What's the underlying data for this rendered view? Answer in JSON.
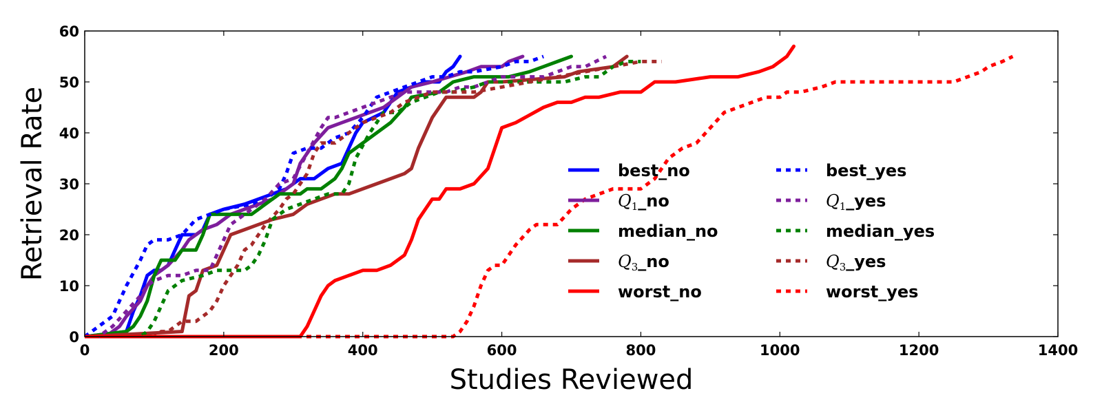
{
  "chart_data": {
    "type": "line",
    "title": "",
    "xlabel": "Studies Reviewed",
    "ylabel": "Retrieval Rate",
    "xlim": [
      0,
      1400
    ],
    "ylim": [
      0,
      60
    ],
    "xticks": [
      0,
      200,
      400,
      600,
      800,
      1000,
      1200,
      1400
    ],
    "yticks": [
      0,
      10,
      20,
      30,
      40,
      50,
      60
    ],
    "grid": false,
    "legend_position": "center-right",
    "series": [
      {
        "key": "best_no",
        "name": "best_no",
        "color": "#0000ff",
        "style": "solid",
        "x": [
          0,
          60,
          70,
          80,
          90,
          100,
          110,
          120,
          130,
          140,
          150,
          160,
          170,
          180,
          200,
          230,
          250,
          270,
          290,
          300,
          310,
          330,
          350,
          370,
          380,
          390,
          400,
          430,
          450,
          470,
          490,
          510,
          520,
          530,
          540
        ],
        "y": [
          0,
          1,
          5,
          8,
          12,
          13,
          13,
          14,
          17,
          20,
          20,
          20,
          21,
          24,
          25,
          26,
          27,
          28,
          29,
          30,
          31,
          31,
          33,
          34,
          37,
          40,
          42,
          44,
          48,
          49,
          50,
          50,
          52,
          53,
          55
        ]
      },
      {
        "key": "q1_no",
        "name": "_no",
        "prefix": "Q",
        "sub": "1",
        "color": "#7e1e9c",
        "style": "solid",
        "x": [
          0,
          30,
          50,
          60,
          80,
          90,
          100,
          120,
          140,
          150,
          160,
          170,
          190,
          210,
          230,
          250,
          270,
          280,
          290,
          300,
          310,
          330,
          350,
          370,
          390,
          410,
          430,
          450,
          470,
          500,
          550,
          570,
          600,
          610,
          630
        ],
        "y": [
          0,
          0,
          2,
          4,
          7,
          10,
          12,
          14,
          17,
          19,
          20,
          21,
          22,
          24,
          25,
          26,
          27,
          28,
          29,
          30,
          34,
          38,
          41,
          42,
          43,
          44,
          45,
          47,
          49,
          50,
          52,
          53,
          53,
          54,
          55
        ]
      },
      {
        "key": "median_no",
        "name": "median_no",
        "color": "#008000",
        "style": "solid",
        "x": [
          0,
          60,
          70,
          80,
          90,
          100,
          110,
          130,
          140,
          160,
          170,
          180,
          240,
          270,
          280,
          310,
          320,
          340,
          360,
          370,
          380,
          400,
          420,
          440,
          460,
          470,
          510,
          530,
          560,
          610,
          640,
          660,
          680,
          700
        ],
        "y": [
          0,
          1,
          2,
          4,
          7,
          12,
          15,
          15,
          17,
          17,
          20,
          24,
          24,
          27,
          28,
          28,
          29,
          29,
          31,
          33,
          36,
          38,
          40,
          42,
          45,
          47,
          48,
          50,
          51,
          51,
          52,
          53,
          54,
          55
        ]
      },
      {
        "key": "q3_no",
        "name": "_no",
        "prefix": "Q",
        "sub": "3",
        "color": "#a52a2a",
        "style": "solid",
        "x": [
          0,
          140,
          150,
          160,
          170,
          190,
          210,
          230,
          250,
          270,
          300,
          320,
          340,
          360,
          380,
          400,
          420,
          440,
          460,
          470,
          480,
          500,
          520,
          560,
          570,
          580,
          600,
          690,
          710,
          760,
          780
        ],
        "y": [
          0,
          1,
          8,
          9,
          13,
          14,
          20,
          21,
          22,
          23,
          24,
          26,
          27,
          28,
          28,
          29,
          30,
          31,
          32,
          33,
          37,
          43,
          47,
          47,
          48,
          50,
          50,
          51,
          52,
          53,
          55
        ]
      },
      {
        "key": "worst_no",
        "name": "worst_no",
        "color": "#ff0000",
        "style": "solid",
        "x": [
          0,
          310,
          320,
          330,
          340,
          350,
          360,
          380,
          400,
          420,
          440,
          460,
          470,
          480,
          490,
          500,
          510,
          520,
          540,
          560,
          580,
          600,
          620,
          660,
          680,
          700,
          720,
          740,
          770,
          800,
          820,
          850,
          900,
          940,
          970,
          990,
          1010,
          1020
        ],
        "y": [
          0,
          0,
          2,
          5,
          8,
          10,
          11,
          12,
          13,
          13,
          14,
          16,
          19,
          23,
          25,
          27,
          27,
          29,
          29,
          30,
          33,
          41,
          42,
          45,
          46,
          46,
          47,
          47,
          48,
          48,
          50,
          50,
          51,
          51,
          52,
          53,
          55,
          57
        ]
      },
      {
        "key": "best_yes",
        "name": "best_yes",
        "color": "#0000ff",
        "style": "dotted",
        "x": [
          0,
          20,
          40,
          60,
          80,
          90,
          100,
          120,
          140,
          160,
          180,
          200,
          240,
          260,
          280,
          290,
          300,
          320,
          340,
          360,
          380,
          400,
          410,
          420,
          440,
          460,
          480,
          500,
          520,
          540,
          560,
          600,
          620,
          640,
          660
        ],
        "y": [
          0,
          2,
          4,
          10,
          15,
          18,
          19,
          19,
          20,
          23,
          24,
          25,
          26,
          27,
          29,
          32,
          36,
          37,
          37,
          39,
          40,
          43,
          45,
          47,
          48,
          49,
          50,
          51,
          51,
          52,
          52,
          53,
          54,
          54,
          55
        ]
      },
      {
        "key": "q1_yes",
        "name": "_yes",
        "prefix": "Q",
        "sub": "1",
        "color": "#7e1e9c",
        "style": "dotted",
        "x": [
          0,
          20,
          40,
          60,
          80,
          90,
          100,
          120,
          140,
          160,
          180,
          190,
          200,
          210,
          230,
          260,
          280,
          300,
          320,
          340,
          350,
          360,
          380,
          400,
          420,
          440,
          460,
          480,
          500,
          520,
          540,
          560,
          600,
          620,
          640,
          660,
          680,
          700,
          720,
          750
        ],
        "y": [
          0,
          0,
          2,
          5,
          8,
          10,
          11,
          12,
          12,
          13,
          13,
          16,
          19,
          22,
          24,
          27,
          30,
          31,
          36,
          41,
          43,
          43,
          44,
          45,
          46,
          47,
          48,
          48,
          48,
          48,
          49,
          49,
          51,
          51,
          51,
          51,
          52,
          53,
          53,
          55
        ]
      },
      {
        "key": "median_yes",
        "name": "median_yes",
        "color": "#008000",
        "style": "dotted",
        "x": [
          0,
          80,
          90,
          100,
          110,
          120,
          130,
          140,
          170,
          190,
          210,
          230,
          240,
          250,
          260,
          270,
          290,
          310,
          330,
          350,
          370,
          380,
          390,
          410,
          430,
          450,
          470,
          490,
          510,
          530,
          560,
          580,
          600,
          640,
          660,
          690,
          720,
          740,
          760,
          780,
          800
        ],
        "y": [
          0,
          0,
          1,
          3,
          6,
          9,
          10,
          11,
          12,
          13,
          13,
          13,
          14,
          16,
          19,
          23,
          25,
          26,
          27,
          28,
          28,
          30,
          35,
          40,
          44,
          44,
          46,
          47,
          48,
          48,
          49,
          50,
          50,
          50,
          50,
          50,
          51,
          51,
          53,
          54,
          54
        ]
      },
      {
        "key": "q3_yes",
        "name": "_yes",
        "prefix": "Q",
        "sub": "3",
        "color": "#a52a2a",
        "style": "dotted",
        "x": [
          0,
          100,
          110,
          120,
          130,
          140,
          150,
          160,
          170,
          180,
          190,
          200,
          220,
          230,
          240,
          250,
          260,
          280,
          290,
          300,
          320,
          330,
          340,
          350,
          360,
          380,
          400,
          420,
          440,
          460,
          480,
          500,
          520,
          560,
          600,
          640,
          680,
          720,
          760,
          800,
          830
        ],
        "y": [
          0,
          0,
          1,
          1,
          2,
          3,
          3,
          3,
          4,
          5,
          7,
          10,
          14,
          17,
          18,
          20,
          22,
          25,
          27,
          28,
          32,
          36,
          38,
          38,
          38,
          40,
          42,
          43,
          44,
          46,
          47,
          48,
          48,
          48,
          49,
          50,
          51,
          52,
          53,
          54,
          54
        ]
      },
      {
        "key": "worst_yes",
        "name": "worst_yes",
        "color": "#ff0000",
        "style": "dotted",
        "x": [
          0,
          530,
          540,
          550,
          560,
          570,
          580,
          590,
          600,
          610,
          620,
          640,
          650,
          660,
          680,
          700,
          720,
          740,
          760,
          780,
          800,
          820,
          840,
          860,
          880,
          900,
          920,
          940,
          960,
          980,
          1000,
          1010,
          1030,
          1060,
          1080,
          1130,
          1200,
          1250,
          1270,
          1290,
          1300,
          1320,
          1335
        ],
        "y": [
          0,
          0,
          1,
          3,
          6,
          10,
          13,
          14,
          14,
          16,
          18,
          21,
          22,
          22,
          22,
          25,
          27,
          28,
          29,
          29,
          29,
          31,
          35,
          37,
          38,
          41,
          44,
          45,
          46,
          47,
          47,
          48,
          48,
          49,
          50,
          50,
          50,
          50,
          51,
          52,
          53,
          54,
          55
        ]
      }
    ],
    "legend": {
      "columns": [
        [
          "best_no",
          "q1_no",
          "median_no",
          "q3_no",
          "worst_no"
        ],
        [
          "best_yes",
          "q1_yes",
          "median_yes",
          "q3_yes",
          "worst_yes"
        ]
      ]
    }
  }
}
